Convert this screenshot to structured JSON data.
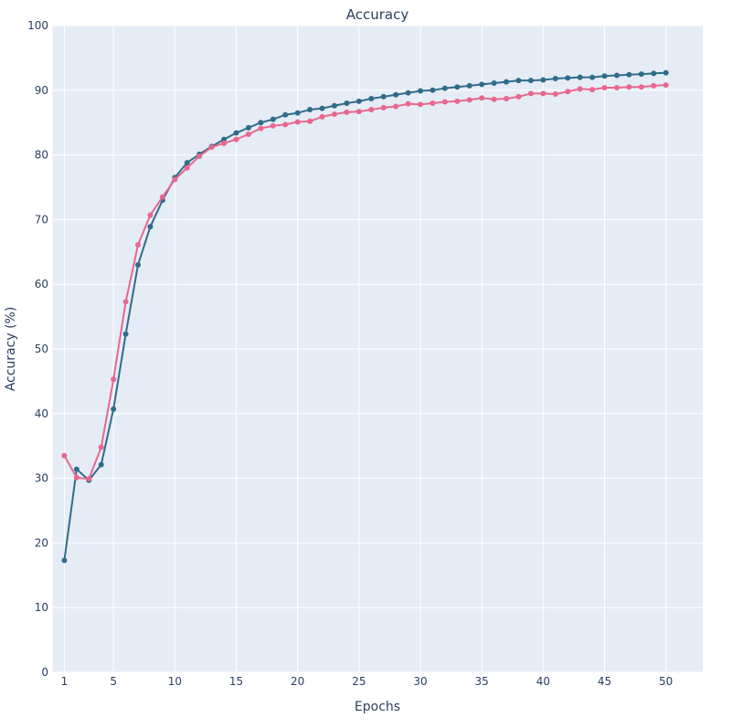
{
  "chart_data": {
    "type": "line",
    "title": "Accuracy",
    "xlabel": "Epochs",
    "ylabel": "Accuracy (%)",
    "xlim": [
      0,
      53
    ],
    "ylim": [
      0,
      100
    ],
    "x_ticks": [
      1,
      5,
      10,
      15,
      20,
      25,
      30,
      35,
      40,
      45,
      50
    ],
    "y_ticks": [
      0,
      10,
      20,
      30,
      40,
      50,
      60,
      70,
      80,
      90,
      100
    ],
    "grid": true,
    "plot_background": "#e5ecf6",
    "x": [
      1,
      2,
      3,
      4,
      5,
      6,
      7,
      8,
      9,
      10,
      11,
      12,
      13,
      14,
      15,
      16,
      17,
      18,
      19,
      20,
      21,
      22,
      23,
      24,
      25,
      26,
      27,
      28,
      29,
      30,
      31,
      32,
      33,
      34,
      35,
      36,
      37,
      38,
      39,
      40,
      41,
      42,
      43,
      44,
      45,
      46,
      47,
      48,
      49,
      50
    ],
    "series": [
      {
        "color": "#2f6c8a",
        "values": [
          17.3,
          31.4,
          29.7,
          32.1,
          40.7,
          52.3,
          63.0,
          68.9,
          73.0,
          76.5,
          78.8,
          80.1,
          81.3,
          82.4,
          83.4,
          84.2,
          85.0,
          85.5,
          86.2,
          86.5,
          87.0,
          87.2,
          87.6,
          88.0,
          88.3,
          88.7,
          89.0,
          89.3,
          89.6,
          89.9,
          90.0,
          90.3,
          90.5,
          90.7,
          90.9,
          91.1,
          91.3,
          91.5,
          91.5,
          91.6,
          91.8,
          91.9,
          92.0,
          92.0,
          92.2,
          92.3,
          92.4,
          92.5,
          92.6,
          92.7
        ]
      },
      {
        "color": "#e8678f",
        "values": [
          33.5,
          30.1,
          29.9,
          34.8,
          45.3,
          57.3,
          66.1,
          70.7,
          73.5,
          76.2,
          78.0,
          79.8,
          81.2,
          81.8,
          82.4,
          83.2,
          84.1,
          84.5,
          84.7,
          85.1,
          85.2,
          85.9,
          86.3,
          86.6,
          86.7,
          87.0,
          87.3,
          87.5,
          87.9,
          87.8,
          88.0,
          88.2,
          88.3,
          88.5,
          88.8,
          88.6,
          88.7,
          89.0,
          89.5,
          89.5,
          89.4,
          89.8,
          90.2,
          90.1,
          90.4,
          90.4,
          90.5,
          90.5,
          90.7,
          90.8
        ]
      }
    ]
  }
}
